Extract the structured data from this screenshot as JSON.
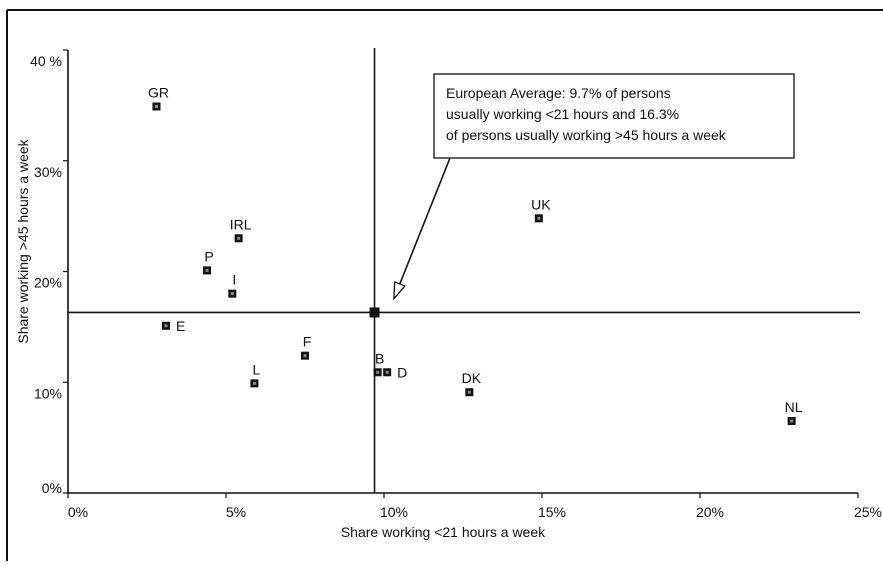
{
  "chart_data": {
    "type": "scatter",
    "title": "",
    "xlabel": "Share working <21 hours a week",
    "ylabel": "Share working >45 hours a week",
    "xlim": [
      0,
      25
    ],
    "ylim": [
      0,
      40
    ],
    "x_ticks": [
      {
        "value": 0,
        "label": "0%"
      },
      {
        "value": 5,
        "label": "5%"
      },
      {
        "value": 10,
        "label": "10%"
      },
      {
        "value": 15,
        "label": "15%"
      },
      {
        "value": 20,
        "label": "20%"
      },
      {
        "value": 25,
        "label": "25%"
      }
    ],
    "y_ticks": [
      {
        "value": 0,
        "label": "0%"
      },
      {
        "value": 10,
        "label": "10%"
      },
      {
        "value": 20,
        "label": "20%"
      },
      {
        "value": 30,
        "label": "30%"
      },
      {
        "value": 40,
        "label": "40 %"
      }
    ],
    "grid": false,
    "legend": "none",
    "reference_lines": {
      "x": 9.7,
      "y": 16.3
    },
    "points": [
      {
        "label": "GR",
        "x": 2.8,
        "y": 34.9,
        "label_pos": "above"
      },
      {
        "label": "IRL",
        "x": 5.4,
        "y": 23.0,
        "label_pos": "above"
      },
      {
        "label": "P",
        "x": 4.4,
        "y": 20.1,
        "label_pos": "above"
      },
      {
        "label": "I",
        "x": 5.2,
        "y": 18.0,
        "label_pos": "above"
      },
      {
        "label": "E",
        "x": 3.1,
        "y": 15.1,
        "label_pos": "right"
      },
      {
        "label": "F",
        "x": 7.5,
        "y": 12.4,
        "label_pos": "above"
      },
      {
        "label": "L",
        "x": 5.9,
        "y": 9.9,
        "label_pos": "above"
      },
      {
        "label": "B",
        "x": 9.8,
        "y": 10.9,
        "label_pos": "above"
      },
      {
        "label": "D",
        "x": 10.1,
        "y": 10.9,
        "label_pos": "right"
      },
      {
        "label": "DK",
        "x": 12.7,
        "y": 9.1,
        "label_pos": "above"
      },
      {
        "label": "UK",
        "x": 14.9,
        "y": 24.8,
        "label_pos": "above"
      },
      {
        "label": "NL",
        "x": 22.9,
        "y": 6.5,
        "label_pos": "above"
      }
    ],
    "average_point": {
      "x": 9.7,
      "y": 16.3
    },
    "annotation": {
      "lines": [
        "European Average: 9.7% of persons",
        "usually working <21 hours and 16.3%",
        "of persons usually working >45 hours a week"
      ]
    },
    "colors": {
      "ink": "#111111",
      "background": "#ffffff"
    }
  }
}
